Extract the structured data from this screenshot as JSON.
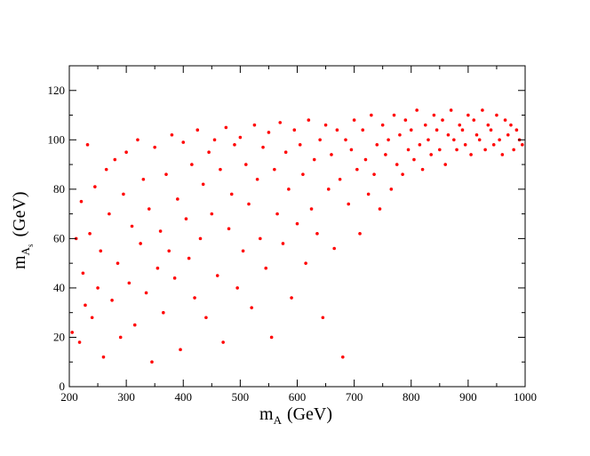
{
  "chart_data": {
    "type": "scatter",
    "title": "",
    "xlabel": "m",
    "xlabel_subscript": "A",
    "xlabel_unit": "(GeV)",
    "ylabel": "m",
    "ylabel_subscript": "A",
    "ylabel_subsubscript": "s",
    "ylabel_unit": "(GeV)",
    "xlim": [
      200,
      1000
    ],
    "ylim": [
      0,
      130
    ],
    "xticks": [
      "200",
      "300",
      "400",
      "500",
      "600",
      "700",
      "800",
      "900",
      "1000"
    ],
    "yticks": [
      "0",
      "20",
      "40",
      "60",
      "80",
      "100",
      "120"
    ],
    "grid": false,
    "legend": "none",
    "marker_color": "#ff0000",
    "series": [
      {
        "points_description_note": "",
        "x": [
          205,
          212,
          218,
          221,
          224,
          228,
          232,
          236,
          240,
          245,
          250,
          255,
          260,
          265,
          270,
          275,
          280,
          285,
          290,
          295,
          300,
          305,
          310,
          315,
          320,
          325,
          330,
          335,
          340,
          345,
          350,
          355,
          360,
          365,
          370,
          375,
          380,
          385,
          390,
          395,
          400,
          405,
          410,
          415,
          420,
          425,
          430,
          435,
          440,
          445,
          450,
          455,
          460,
          465,
          470,
          475,
          480,
          485,
          490,
          495,
          500,
          505,
          510,
          515,
          520,
          525,
          530,
          535,
          540,
          545,
          550,
          555,
          560,
          565,
          570,
          575,
          580,
          585,
          590,
          595,
          600,
          605,
          610,
          615,
          620,
          625,
          630,
          635,
          640,
          645,
          650,
          655,
          660,
          665,
          670,
          675,
          680,
          685,
          690,
          695,
          700,
          705,
          710,
          715,
          720,
          725,
          730,
          735,
          740,
          745,
          750,
          755,
          760,
          765,
          770,
          775,
          780,
          785,
          790,
          795,
          800,
          805,
          810,
          815,
          820,
          825,
          830,
          835,
          840,
          845,
          850,
          855,
          860,
          865,
          870,
          875,
          880,
          885,
          890,
          895,
          900,
          905,
          910,
          915,
          920,
          925,
          930,
          935,
          940,
          945,
          950,
          955,
          960,
          965,
          970,
          975,
          980,
          985,
          990,
          995
        ],
        "y": [
          22,
          60,
          18,
          75,
          46,
          33,
          98,
          62,
          28,
          81,
          40,
          55,
          12,
          88,
          70,
          35,
          92,
          50,
          20,
          78,
          95,
          42,
          65,
          25,
          100,
          58,
          84,
          38,
          72,
          10,
          97,
          48,
          63,
          30,
          86,
          55,
          102,
          44,
          76,
          15,
          99,
          68,
          52,
          90,
          36,
          104,
          60,
          82,
          28,
          95,
          70,
          100,
          45,
          88,
          18,
          105,
          64,
          78,
          98,
          40,
          101,
          55,
          90,
          74,
          32,
          106,
          84,
          60,
          97,
          48,
          103,
          20,
          88,
          70,
          107,
          58,
          95,
          80,
          36,
          104,
          66,
          98,
          86,
          50,
          108,
          72,
          92,
          62,
          100,
          28,
          106,
          80,
          94,
          56,
          104,
          84,
          12,
          100,
          74,
          96,
          108,
          88,
          62,
          104,
          92,
          78,
          110,
          86,
          98,
          72,
          106,
          94,
          100,
          80,
          110,
          90,
          102,
          86,
          108,
          96,
          104,
          92,
          112,
          98,
          88,
          106,
          100,
          94,
          110,
          104,
          96,
          108,
          90,
          102,
          112,
          100,
          96,
          106,
          104,
          98,
          110,
          94,
          108,
          102,
          100,
          112,
          96,
          106,
          104,
          98,
          110,
          100,
          94,
          108,
          102,
          106,
          96,
          104,
          100,
          98
        ]
      }
    ]
  }
}
